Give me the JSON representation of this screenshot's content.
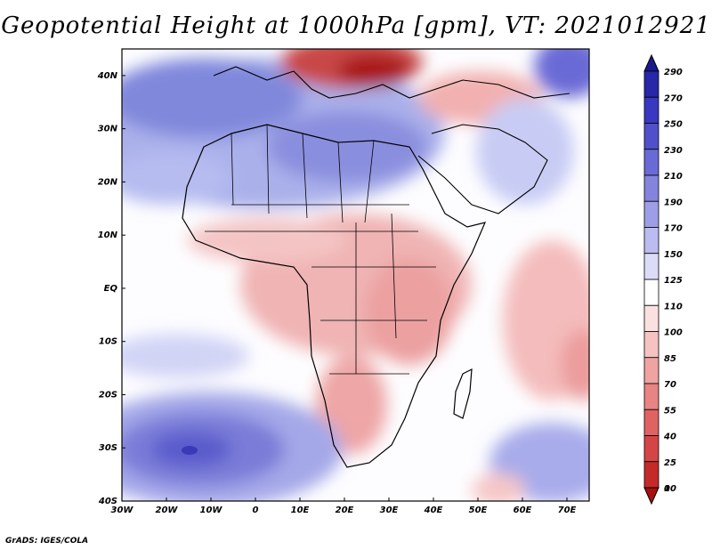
{
  "title": "Geopotential Height at 1000hPa [gpm], VT: 2021012921",
  "footer": "GrADS: IGES/COLA",
  "lat_labels": [
    "40N",
    "30N",
    "20N",
    "10N",
    "EQ",
    "10S",
    "20S",
    "30S",
    "40S"
  ],
  "lon_labels": [
    "30W",
    "20W",
    "10W",
    "0",
    "10E",
    "20E",
    "30E",
    "40E",
    "50E",
    "60E",
    "70E"
  ],
  "colorbar": {
    "labels": [
      "290",
      "270",
      "250",
      "230",
      "210",
      "190",
      "170",
      "150",
      "125",
      "110",
      "100",
      "85",
      "70",
      "55",
      "40",
      "25",
      "10",
      "0"
    ],
    "colors": [
      "#1a1a8c",
      "#2727a8",
      "#3838c0",
      "#5050cc",
      "#6a6ad6",
      "#8484de",
      "#9e9ee6",
      "#bcbcf0",
      "#dcdcf8",
      "#ffffff",
      "#fbe0e0",
      "#f6c3c3",
      "#f0a3a3",
      "#e88484",
      "#e06363",
      "#d44646",
      "#c42a2a",
      "#a81010"
    ]
  },
  "chart_data": {
    "type": "heatmap",
    "title": "Geopotential Height at 1000hPa [gpm], VT: 2021012921",
    "variable": "Geopotential Height at 1000hPa",
    "units": "gpm",
    "valid_time": "2021012921",
    "x_range": [
      -30,
      75
    ],
    "y_range": [
      -40,
      45
    ],
    "levels": [
      0,
      10,
      25,
      40,
      55,
      70,
      85,
      100,
      110,
      125,
      150,
      170,
      190,
      210,
      230,
      250,
      270,
      290
    ]
  }
}
